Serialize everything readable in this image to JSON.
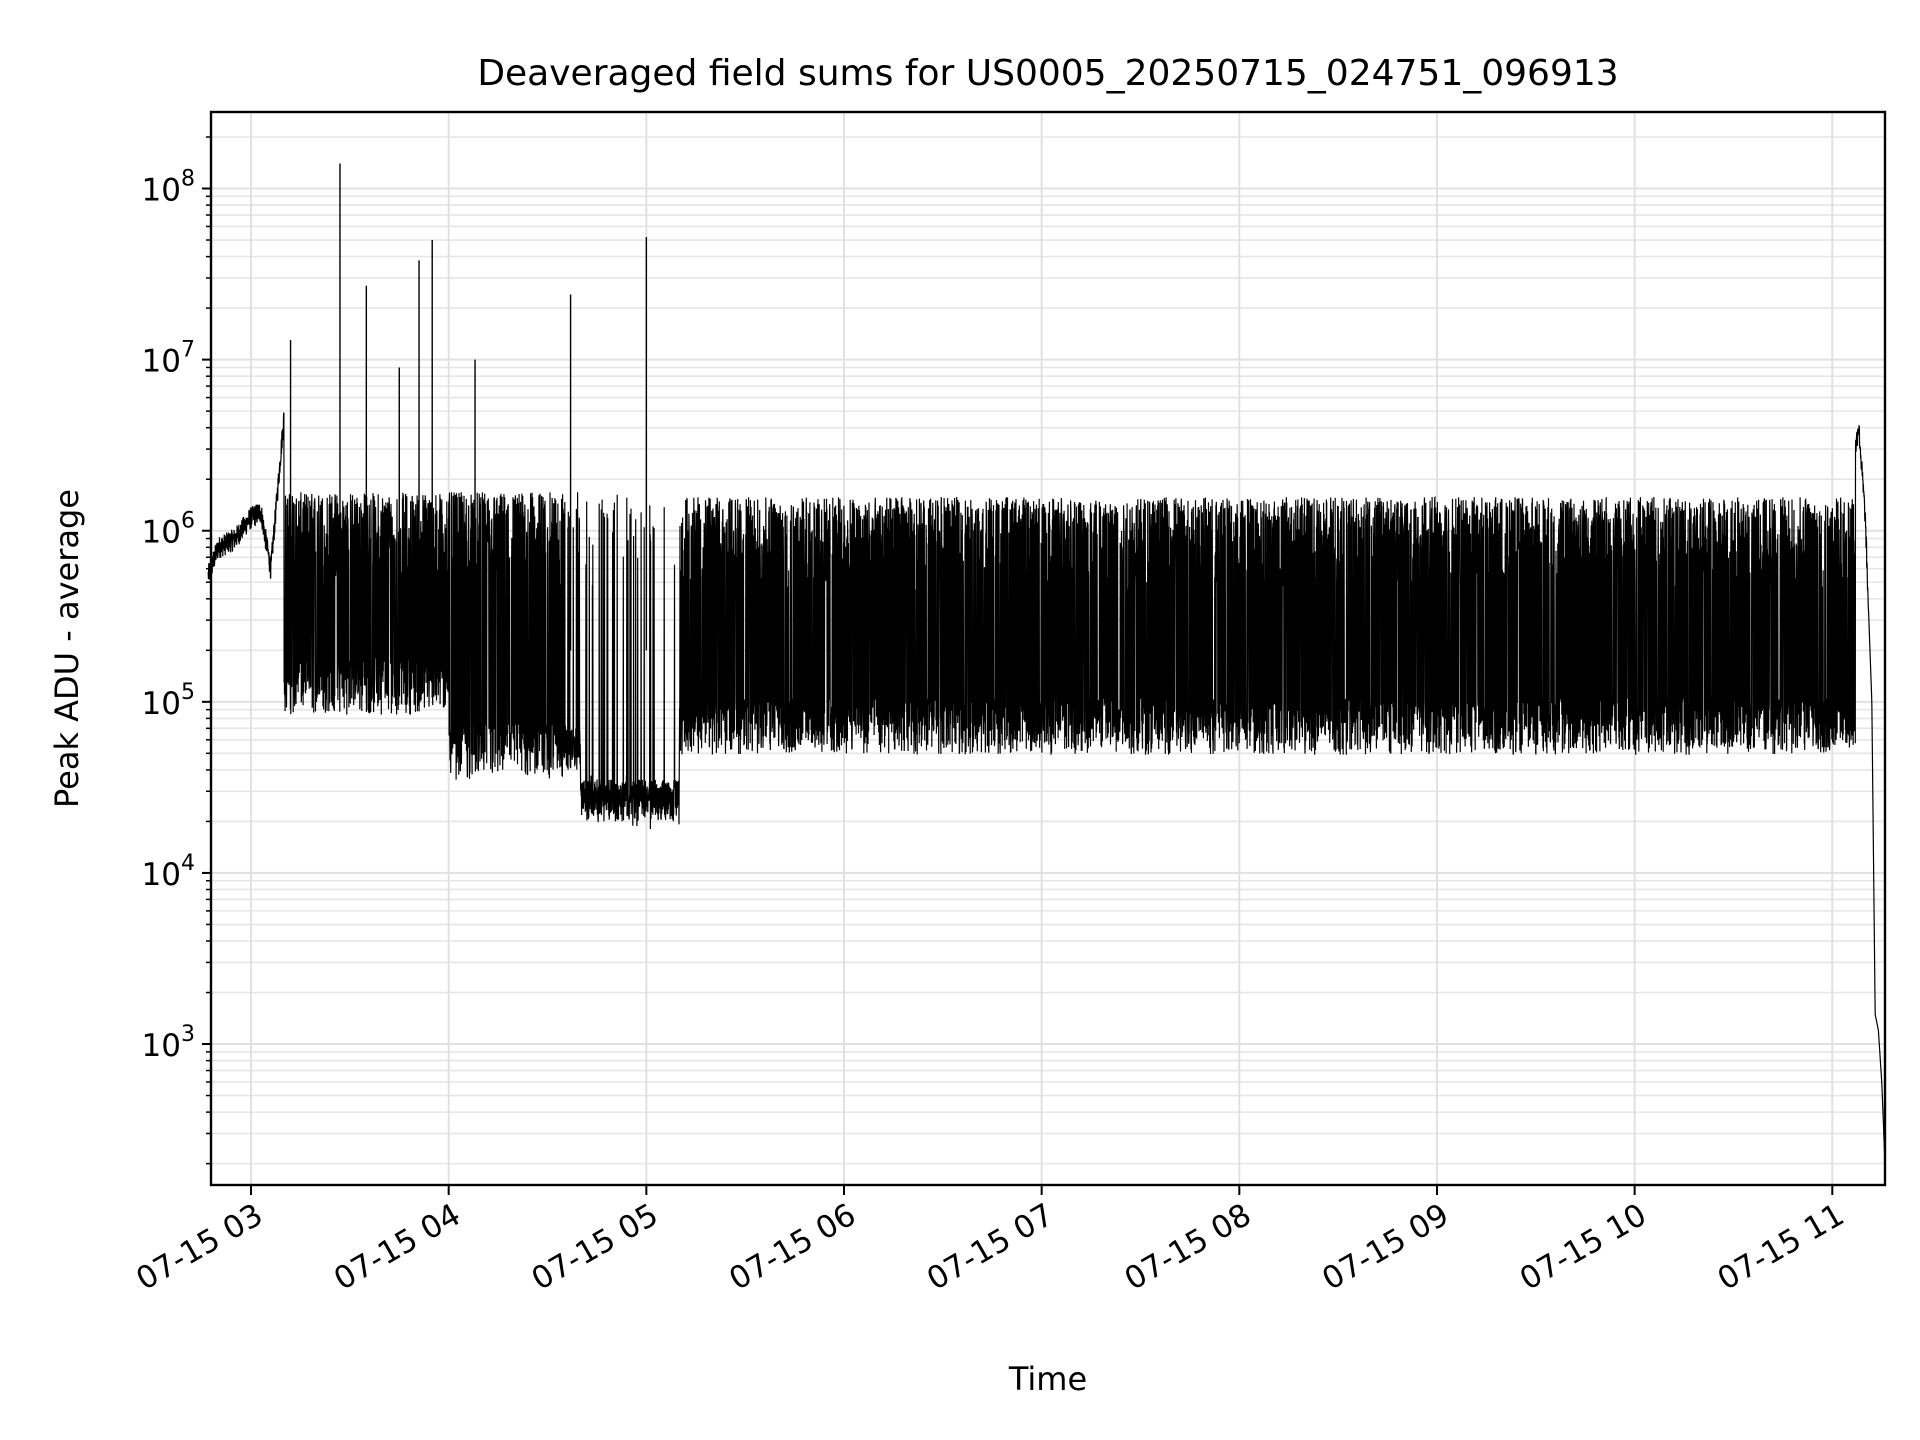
{
  "chart_data": {
    "type": "line",
    "title": "Deaveraged field sums for US0005_20250715_024751_096913",
    "xlabel": "Time",
    "ylabel": "Peak ADU - average",
    "yscale": "log",
    "ylim": [
      150,
      280000000
    ],
    "xlim": [
      "07-15 02:47:51",
      "07-15 11:16:00"
    ],
    "grid": true,
    "line_color": "#000000",
    "x_ticks": [
      {
        "label": "07-15 03",
        "time": "07-15 03:00"
      },
      {
        "label": "07-15 04",
        "time": "07-15 04:00"
      },
      {
        "label": "07-15 05",
        "time": "07-15 05:00"
      },
      {
        "label": "07-15 06",
        "time": "07-15 06:00"
      },
      {
        "label": "07-15 07",
        "time": "07-15 07:00"
      },
      {
        "label": "07-15 08",
        "time": "07-15 08:00"
      },
      {
        "label": "07-15 09",
        "time": "07-15 09:00"
      },
      {
        "label": "07-15 10",
        "time": "07-15 10:00"
      },
      {
        "label": "07-15 11",
        "time": "07-15 11:00"
      }
    ],
    "y_ticks": [
      {
        "base": "10",
        "exp": "3",
        "value": 1000
      },
      {
        "base": "10",
        "exp": "4",
        "value": 10000
      },
      {
        "base": "10",
        "exp": "5",
        "value": 100000
      },
      {
        "base": "10",
        "exp": "6",
        "value": 1000000
      },
      {
        "base": "10",
        "exp": "7",
        "value": 10000000
      },
      {
        "base": "10",
        "exp": "8",
        "value": 100000000
      }
    ],
    "series": [
      {
        "color": "#000000",
        "points": [
          [
            "07-15 02:47",
            550000
          ],
          [
            "07-15 02:50",
            800000
          ],
          [
            "07-15 02:55",
            900000
          ],
          [
            "07-15 03:00",
            1200000
          ],
          [
            "07-15 03:03",
            1300000
          ],
          [
            "07-15 03:06",
            600000
          ],
          [
            "07-15 03:12",
            13000000
          ],
          [
            "07-15 03:14",
            400000
          ],
          [
            "07-15 03:20",
            1500000
          ],
          [
            "07-15 03:24",
            1200000
          ],
          [
            "07-15 03:27",
            140000000
          ],
          [
            "07-15 03:28",
            150000
          ],
          [
            "07-15 03:35",
            27000000
          ],
          [
            "07-15 03:36",
            60000
          ],
          [
            "07-15 03:45",
            9000000
          ],
          [
            "07-15 03:46",
            50000
          ],
          [
            "07-15 03:51",
            38000000
          ],
          [
            "07-15 03:53",
            400000
          ],
          [
            "07-15 03:55",
            50000000
          ],
          [
            "07-15 03:57",
            80000
          ],
          [
            "07-15 04:00",
            40000
          ],
          [
            "07-15 04:05",
            300000
          ],
          [
            "07-15 04:08",
            10000000
          ],
          [
            "07-15 04:10",
            60000
          ],
          [
            "07-15 04:20",
            50000
          ],
          [
            "07-15 04:30",
            40000
          ],
          [
            "07-15 04:37",
            24000000
          ],
          [
            "07-15 04:38",
            40000
          ],
          [
            "07-15 04:45",
            30000
          ],
          [
            "07-15 04:50",
            25000
          ],
          [
            "07-15 04:55",
            22000
          ],
          [
            "07-15 05:00",
            52000000
          ],
          [
            "07-15 05:01",
            20000
          ],
          [
            "07-15 05:05",
            40000
          ],
          [
            "07-15 05:10",
            100000
          ],
          [
            "07-15 05:15",
            1200000
          ],
          [
            "07-15 05:30",
            1500000
          ],
          [
            "07-15 06:00",
            1500000
          ],
          [
            "07-15 07:00",
            1400000
          ],
          [
            "07-15 08:00",
            1600000
          ],
          [
            "07-15 08:30",
            1400000
          ],
          [
            "07-15 09:00",
            1300000
          ],
          [
            "07-15 10:00",
            1300000
          ],
          [
            "07-15 10:45",
            400000
          ],
          [
            "07-15 11:00",
            450000
          ],
          [
            "07-15 11:05",
            1500000
          ],
          [
            "07-15 11:08",
            4200000
          ],
          [
            "07-15 11:10",
            1200000
          ],
          [
            "07-15 11:12",
            100000
          ],
          [
            "07-15 11:13",
            1500
          ],
          [
            "07-15 11:14",
            1200
          ],
          [
            "07-15 11:15",
            600
          ],
          [
            "07-15 11:16",
            200
          ]
        ]
      }
    ]
  }
}
